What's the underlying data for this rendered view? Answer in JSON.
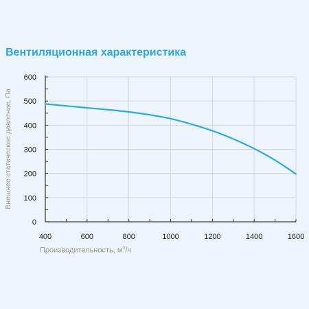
{
  "chart_data": {
    "type": "line",
    "title": "Вентиляционная характеристика",
    "xlabel": "Производительность, м",
    "xlabel_sup": "3",
    "xlabel_suffix": "/ч",
    "ylabel": "Внешнее статическое давление, Па",
    "xlim": [
      400,
      1600
    ],
    "ylim": [
      0,
      600
    ],
    "x_ticks": [
      400,
      600,
      800,
      1000,
      1200,
      1400,
      1600
    ],
    "y_ticks": [
      0,
      100,
      200,
      300,
      400,
      500,
      600
    ],
    "grid": true,
    "series": [
      {
        "color": "#29a9e1",
        "x": [
          400,
          500,
          600,
          700,
          800,
          900,
          1000,
          1100,
          1200,
          1300,
          1400,
          1500,
          1600
        ],
        "y": [
          488,
          480,
          472,
          464,
          455,
          443,
          427,
          404,
          377,
          343,
          303,
          255,
          198
        ]
      }
    ]
  }
}
